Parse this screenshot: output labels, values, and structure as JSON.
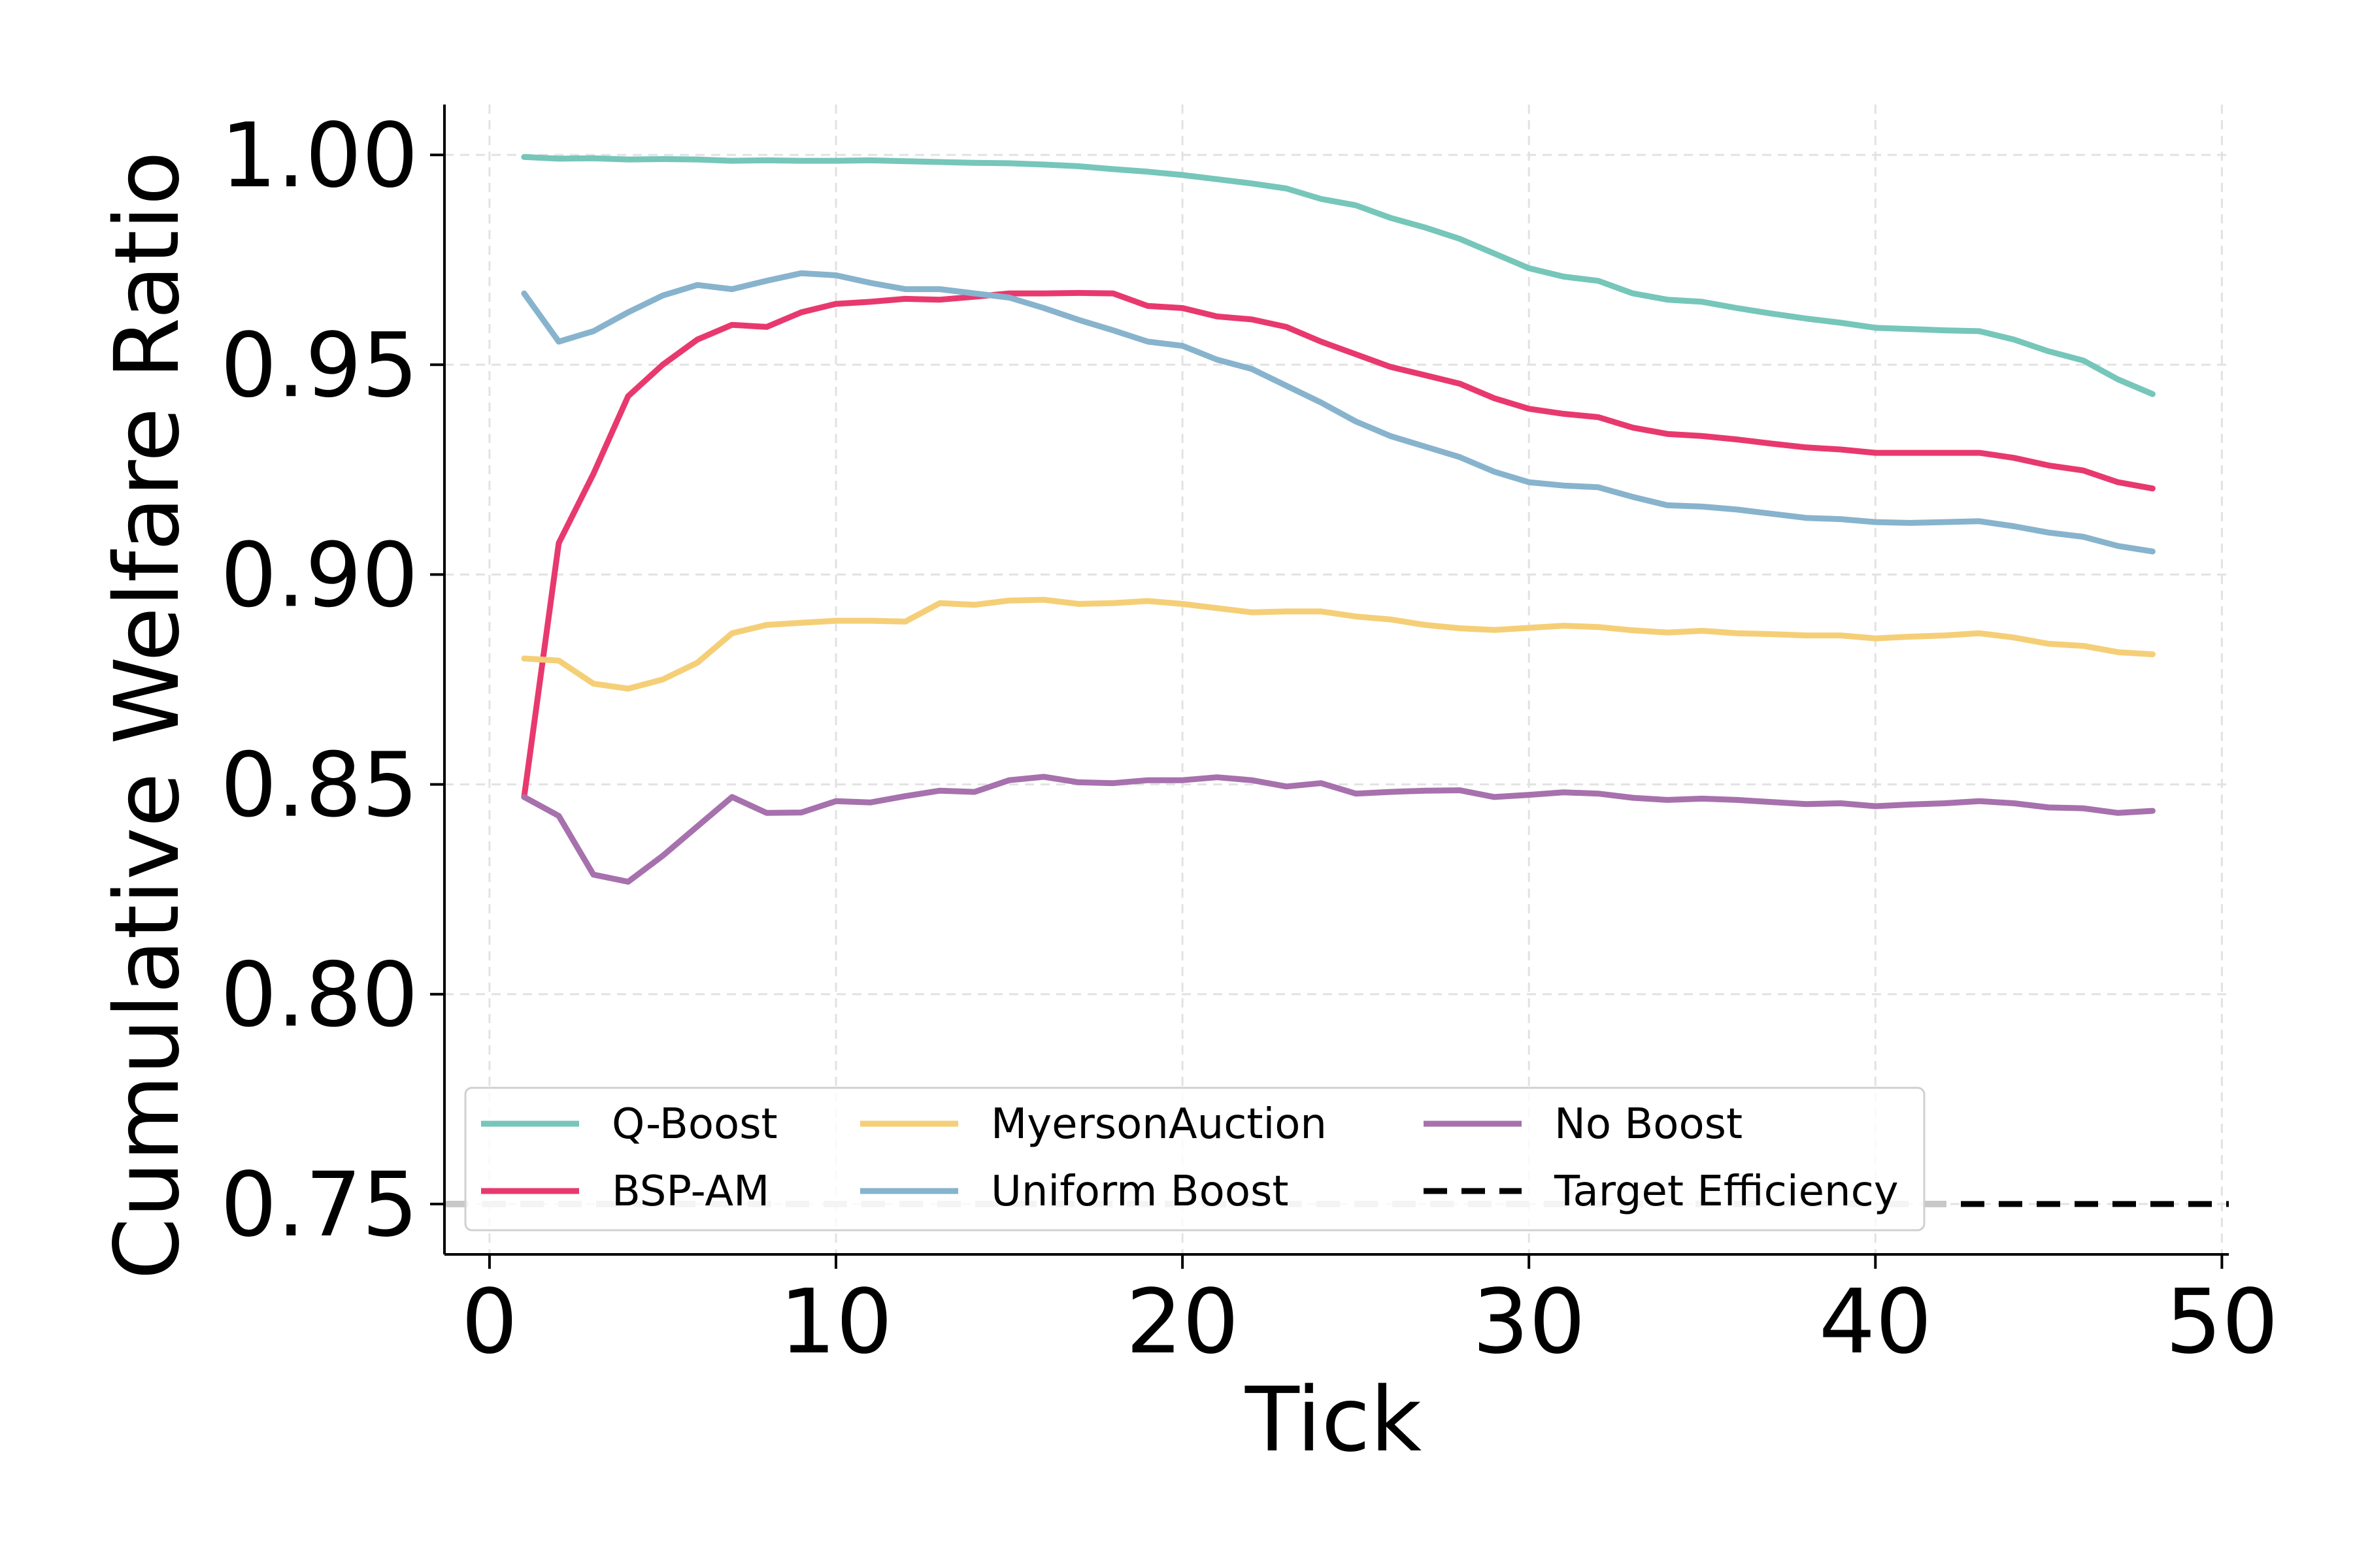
{
  "chart_data": {
    "type": "line",
    "xlabel": "Tick",
    "ylabel": "Cumulative Welfare Ratio",
    "xlim": [
      -1.3,
      50.2
    ],
    "ylim": [
      0.738,
      1.012
    ],
    "xticks": [
      {
        "value": 0,
        "label": "0"
      },
      {
        "value": 10,
        "label": "10"
      },
      {
        "value": 20,
        "label": "20"
      },
      {
        "value": 30,
        "label": "30"
      },
      {
        "value": 40,
        "label": "40"
      },
      {
        "value": 50,
        "label": "50"
      }
    ],
    "yticks": [
      {
        "value": 0.75,
        "label": "0.75"
      },
      {
        "value": 0.8,
        "label": "0.80"
      },
      {
        "value": 0.85,
        "label": "0.85"
      },
      {
        "value": 0.9,
        "label": "0.90"
      },
      {
        "value": 0.95,
        "label": "0.95"
      },
      {
        "value": 1.0,
        "label": "1.00"
      }
    ],
    "grid": true,
    "legend_position": "lower-left",
    "x": [
      1,
      2,
      3,
      4,
      5,
      6,
      7,
      8,
      9,
      10,
      11,
      12,
      13,
      14,
      15,
      16,
      17,
      18,
      19,
      20,
      21,
      22,
      23,
      24,
      25,
      26,
      27,
      28,
      29,
      30,
      31,
      32,
      33,
      34,
      35,
      36,
      37,
      38,
      39,
      40,
      41,
      42,
      43,
      44,
      45,
      46,
      47,
      48
    ],
    "series": [
      {
        "name": "Q-Boost",
        "color": "#76c6ba",
        "style": "solid",
        "values": [
          0.9995,
          0.9991,
          0.9992,
          0.9989,
          0.999,
          0.9989,
          0.9986,
          0.9987,
          0.9986,
          0.9986,
          0.9987,
          0.9985,
          0.9983,
          0.9981,
          0.998,
          0.9977,
          0.9973,
          0.9966,
          0.996,
          0.9952,
          0.9942,
          0.9932,
          0.992,
          0.9895,
          0.988,
          0.985,
          0.9827,
          0.98,
          0.9765,
          0.973,
          0.971,
          0.97,
          0.967,
          0.9655,
          0.965,
          0.9635,
          0.9622,
          0.961,
          0.96,
          0.9588,
          0.9585,
          0.9582,
          0.958,
          0.956,
          0.9532,
          0.951,
          0.9465,
          0.943
        ]
      },
      {
        "name": "BSP-AM",
        "color": "#e8396e",
        "style": "solid",
        "values": [
          0.847,
          0.9075,
          0.924,
          0.9425,
          0.95,
          0.956,
          0.9595,
          0.959,
          0.9625,
          0.9645,
          0.965,
          0.9657,
          0.9655,
          0.9662,
          0.967,
          0.967,
          0.9671,
          0.967,
          0.964,
          0.9635,
          0.9615,
          0.9608,
          0.959,
          0.9555,
          0.9525,
          0.9495,
          0.9475,
          0.9455,
          0.942,
          0.9395,
          0.9383,
          0.9375,
          0.935,
          0.9335,
          0.933,
          0.9322,
          0.9312,
          0.9303,
          0.9298,
          0.929,
          0.929,
          0.929,
          0.929,
          0.9278,
          0.926,
          0.9248,
          0.922,
          0.9205
        ]
      },
      {
        "name": "MyersonAuction",
        "color": "#f5cf77",
        "style": "solid",
        "values": [
          0.88,
          0.8795,
          0.874,
          0.8728,
          0.875,
          0.879,
          0.886,
          0.888,
          0.8885,
          0.889,
          0.889,
          0.8888,
          0.8932,
          0.8928,
          0.8938,
          0.894,
          0.893,
          0.8932,
          0.8937,
          0.893,
          0.892,
          0.891,
          0.8912,
          0.8912,
          0.89,
          0.8893,
          0.888,
          0.8872,
          0.8868,
          0.8873,
          0.8878,
          0.8875,
          0.8867,
          0.8862,
          0.8866,
          0.886,
          0.8858,
          0.8855,
          0.8855,
          0.8848,
          0.8852,
          0.8855,
          0.886,
          0.885,
          0.8835,
          0.883,
          0.8815,
          0.881
        ]
      },
      {
        "name": "Uniform Boost",
        "color": "#87b3cd",
        "style": "solid",
        "values": [
          0.967,
          0.9555,
          0.958,
          0.9625,
          0.9665,
          0.969,
          0.968,
          0.97,
          0.9718,
          0.9713,
          0.9695,
          0.968,
          0.968,
          0.967,
          0.966,
          0.9635,
          0.9607,
          0.9582,
          0.9555,
          0.9545,
          0.9512,
          0.949,
          0.945,
          0.941,
          0.9365,
          0.933,
          0.9305,
          0.928,
          0.9245,
          0.922,
          0.9212,
          0.9208,
          0.9185,
          0.9165,
          0.9162,
          0.9155,
          0.9145,
          0.9135,
          0.9132,
          0.9125,
          0.9123,
          0.9125,
          0.9127,
          0.9115,
          0.91,
          0.909,
          0.9068,
          0.9055
        ]
      },
      {
        "name": "No Boost",
        "color": "#a671ad",
        "style": "solid",
        "values": [
          0.847,
          0.8425,
          0.8285,
          0.8268,
          0.833,
          0.84,
          0.847,
          0.8432,
          0.8433,
          0.846,
          0.8457,
          0.8472,
          0.8485,
          0.8482,
          0.851,
          0.8518,
          0.8505,
          0.8503,
          0.851,
          0.851,
          0.8517,
          0.851,
          0.8495,
          0.8503,
          0.8478,
          0.8482,
          0.8485,
          0.8486,
          0.847,
          0.8475,
          0.8481,
          0.8478,
          0.8468,
          0.8463,
          0.8466,
          0.8463,
          0.8458,
          0.8453,
          0.8455,
          0.8448,
          0.8452,
          0.8455,
          0.846,
          0.8455,
          0.8445,
          0.8443,
          0.8432,
          0.8437
        ]
      },
      {
        "name": "Target Efficiency",
        "color": "#000000",
        "style": "dashed",
        "constant": 0.75
      }
    ],
    "baseline_segment": {
      "color": "#c8c8c8",
      "style": "dashed",
      "value": 0.75,
      "x_from": -1.3,
      "x_to": 42.2
    }
  }
}
